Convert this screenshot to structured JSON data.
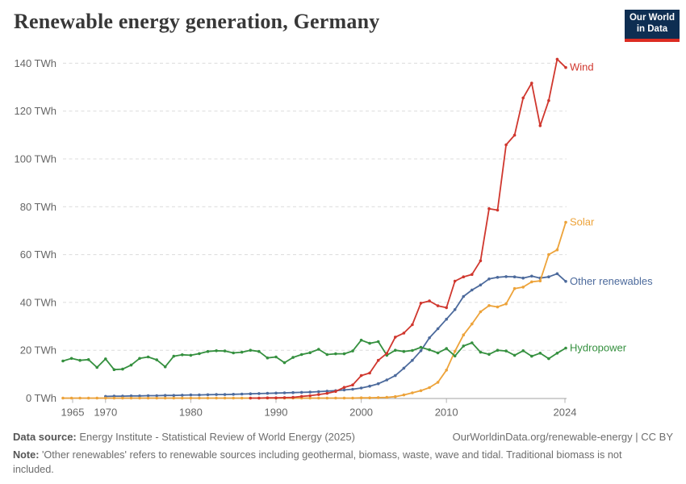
{
  "title": "Renewable energy generation, Germany",
  "logo": {
    "line1": "Our World",
    "line2": "in Data"
  },
  "footer": {
    "source_label": "Data source:",
    "source_text": "Energy Institute - Statistical Review of World Energy (2025)",
    "link_text": "OurWorldinData.org/renewable-energy | CC BY",
    "note_label": "Note:",
    "note_text": "'Other renewables' refers to renewable sources including geothermal, biomass, waste, wave and tidal. Traditional biomass is not included."
  },
  "colors": {
    "grid": "#dcdcdc",
    "axis": "#a3a3a3",
    "tick": "#b5b5b5",
    "tick_label": "#666666",
    "logo_bg": "#0e2e52",
    "logo_stripe": "#dc2c22"
  },
  "chart_data": {
    "type": "line",
    "unit": "TWh",
    "xlim": [
      1965,
      2024
    ],
    "ylim": [
      0,
      140
    ],
    "x_ticks": [
      1965,
      1970,
      1980,
      1990,
      2000,
      2010,
      2024
    ],
    "y_ticks": [
      0,
      20,
      40,
      60,
      80,
      100,
      120,
      140
    ],
    "y_tick_suffix": " TWh",
    "grid": "dashed-horizontal",
    "legend_position": "line-end-labels",
    "series": [
      {
        "name": "Wind",
        "color": "#d0372e",
        "start_year": 1987,
        "values": [
          0.0,
          0.0,
          0.1,
          0.1,
          0.2,
          0.3,
          0.7,
          1.0,
          1.5,
          2.0,
          2.8,
          4.5,
          5.5,
          9.4,
          10.5,
          15.8,
          18.7,
          25.5,
          27.2,
          30.7,
          39.7,
          40.6,
          38.6,
          37.8,
          48.9,
          50.7,
          51.7,
          57.4,
          79.2,
          78.6,
          105.9,
          109.9,
          125.5,
          131.7,
          113.9,
          124.4,
          141.7,
          138.2
        ]
      },
      {
        "name": "Solar",
        "color": "#eda33a",
        "start_year": 1965,
        "values": [
          0.0,
          0.0,
          0.0,
          0.0,
          0.0,
          0.0,
          0.0,
          0.0,
          0.0,
          0.0,
          0.0,
          0.0,
          0.0,
          0.0,
          0.0,
          0.0,
          0.0,
          0.0,
          0.0,
          0.0,
          0.0,
          0.0,
          0.0,
          0.0,
          0.0,
          0.0,
          0.0,
          0.0,
          0.0,
          0.0,
          0.0,
          0.0,
          0.0,
          0.0,
          0.0,
          0.1,
          0.1,
          0.2,
          0.3,
          0.6,
          1.3,
          2.2,
          3.1,
          4.4,
          6.6,
          11.7,
          19.6,
          26.4,
          31.0,
          36.1,
          38.7,
          38.1,
          39.4,
          45.8,
          46.4,
          48.6,
          49.0,
          60.0,
          62.0,
          73.5
        ]
      },
      {
        "name": "Other renewables",
        "color": "#4c6a9c",
        "start_year": 1970,
        "values": [
          0.7,
          0.8,
          0.8,
          0.9,
          0.9,
          1.0,
          1.0,
          1.1,
          1.1,
          1.2,
          1.3,
          1.3,
          1.4,
          1.5,
          1.5,
          1.6,
          1.7,
          1.8,
          1.9,
          2.0,
          2.1,
          2.2,
          2.3,
          2.4,
          2.5,
          2.7,
          2.9,
          3.1,
          3.4,
          3.7,
          4.2,
          5.0,
          6.0,
          7.6,
          9.4,
          12.5,
          15.8,
          19.8,
          25.2,
          29.0,
          33.0,
          37.0,
          42.5,
          45.2,
          47.3,
          49.8,
          50.5,
          50.8,
          50.7,
          50.2,
          51.0,
          50.2,
          50.7,
          52.0,
          48.8
        ]
      },
      {
        "name": "Hydropower",
        "color": "#35903f",
        "start_year": 1965,
        "values": [
          15.5,
          16.6,
          15.8,
          16.1,
          12.8,
          16.4,
          11.9,
          12.1,
          13.8,
          16.6,
          17.2,
          16.0,
          13.1,
          17.5,
          18.1,
          17.9,
          18.6,
          19.5,
          19.8,
          19.7,
          18.9,
          19.2,
          20.0,
          19.5,
          16.8,
          17.2,
          14.8,
          17.0,
          18.2,
          19.0,
          20.4,
          18.2,
          18.5,
          18.5,
          19.7,
          24.2,
          22.9,
          23.6,
          17.9,
          20.0,
          19.5,
          19.9,
          21.2,
          20.2,
          18.9,
          20.7,
          17.6,
          21.8,
          23.1,
          19.2,
          18.3,
          20.0,
          19.7,
          17.9,
          19.8,
          17.5,
          18.8,
          16.5,
          18.8,
          20.9
        ]
      }
    ]
  }
}
